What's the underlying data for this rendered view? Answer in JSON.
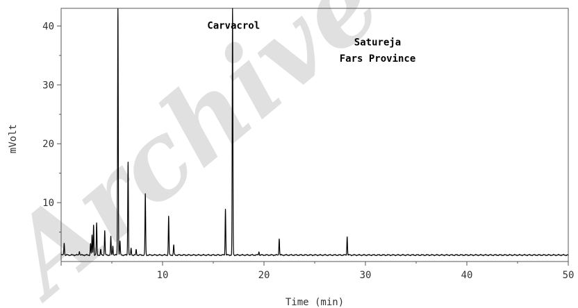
{
  "watermark": "Archive of SID",
  "chart_data": {
    "type": "line",
    "title": "",
    "xlabel": "Time (min)",
    "ylabel": "mVolt",
    "xlim": [
      0,
      50
    ],
    "ylim": [
      0,
      43
    ],
    "x_ticks": [
      0,
      10,
      20,
      30,
      40,
      50
    ],
    "y_ticks": [
      10,
      20,
      30,
      40
    ],
    "grid": false,
    "baseline": 1.1,
    "annotations": [
      {
        "text": "Carvacrol",
        "x": 17.0,
        "y": 39.5
      },
      {
        "text": "Satureja",
        "x": 31.2,
        "y": 36.7
      },
      {
        "text": "Fars Province",
        "x": 31.2,
        "y": 33.9
      }
    ],
    "series": [
      {
        "peaks": [
          {
            "x": 0.3,
            "y": 3.2
          },
          {
            "x": 1.8,
            "y": 1.8
          },
          {
            "x": 2.9,
            "y": 3.0
          },
          {
            "x": 3.05,
            "y": 4.4
          },
          {
            "x": 3.2,
            "y": 6.2
          },
          {
            "x": 3.5,
            "y": 6.5
          },
          {
            "x": 3.9,
            "y": 2.0
          },
          {
            "x": 4.3,
            "y": 5.3
          },
          {
            "x": 4.9,
            "y": 4.2
          },
          {
            "x": 5.1,
            "y": 2.7
          },
          {
            "x": 5.6,
            "y": 43.0
          },
          {
            "x": 5.8,
            "y": 3.5
          },
          {
            "x": 6.6,
            "y": 17.0
          },
          {
            "x": 6.9,
            "y": 2.2
          },
          {
            "x": 7.4,
            "y": 2.0
          },
          {
            "x": 8.3,
            "y": 11.5
          },
          {
            "x": 10.6,
            "y": 7.7
          },
          {
            "x": 11.1,
            "y": 2.8
          },
          {
            "x": 16.2,
            "y": 8.9
          },
          {
            "x": 16.9,
            "y": 43.0
          },
          {
            "x": 19.5,
            "y": 1.7
          },
          {
            "x": 21.5,
            "y": 3.9
          },
          {
            "x": 28.2,
            "y": 4.2
          }
        ]
      }
    ]
  }
}
